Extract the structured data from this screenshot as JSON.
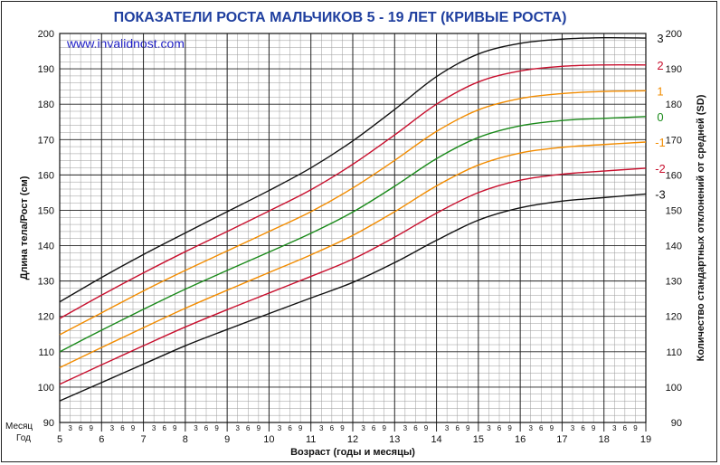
{
  "source_label": "www.invalidnost.com",
  "row_labels": {
    "month": "Месяц",
    "year": "Год"
  },
  "chart_data": {
    "type": "line",
    "title": "ПОКАЗАТЕЛИ РОСТА МАЛЬЧИКОВ 5 - 19 ЛЕТ (КРИВЫЕ РОСТА)",
    "xlabel": "Возраст (годы и месяцы)",
    "ylabel": "Длина тела/Рост (см)",
    "ylabel_right": "Количество стандартных отклонений от средней (SD)",
    "xlim": [
      5,
      19
    ],
    "ylim": [
      90,
      200
    ],
    "x_ticks": [
      5,
      6,
      7,
      8,
      9,
      10,
      11,
      12,
      13,
      14,
      15,
      16,
      17,
      18,
      19
    ],
    "y_ticks": [
      90,
      100,
      110,
      120,
      130,
      140,
      150,
      160,
      170,
      180,
      190,
      200
    ],
    "month_ticks": [
      "3",
      "6",
      "9"
    ],
    "grid": true,
    "x": [
      5,
      6,
      7,
      8,
      9,
      10,
      11,
      12,
      13,
      14,
      15,
      16,
      17,
      18,
      19
    ],
    "series": [
      {
        "name": "3",
        "color": "#111111",
        "values": [
          124.1,
          131.0,
          137.5,
          143.6,
          149.6,
          155.6,
          162.0,
          169.6,
          178.5,
          187.8,
          194.2,
          197.2,
          198.4,
          198.8,
          198.7
        ]
      },
      {
        "name": "2",
        "color": "#c8102e",
        "values": [
          119.4,
          126.0,
          132.3,
          138.3,
          144.0,
          149.8,
          155.8,
          163.0,
          171.3,
          180.0,
          186.3,
          189.4,
          190.7,
          191.1,
          191.1
        ]
      },
      {
        "name": "1",
        "color": "#f28c00",
        "values": [
          114.8,
          121.0,
          127.2,
          133.0,
          138.5,
          144.0,
          149.6,
          156.3,
          164.1,
          172.3,
          178.4,
          181.6,
          183.0,
          183.6,
          183.8
        ]
      },
      {
        "name": "0",
        "color": "#1a8a1a",
        "values": [
          110.0,
          116.1,
          122.0,
          127.7,
          133.0,
          138.2,
          143.5,
          149.5,
          156.8,
          164.6,
          170.6,
          173.9,
          175.4,
          176.0,
          176.5
        ]
      },
      {
        "name": "-1",
        "color": "#f28c00",
        "values": [
          105.5,
          111.2,
          116.8,
          122.3,
          127.4,
          132.4,
          137.4,
          142.9,
          149.6,
          156.9,
          162.8,
          166.2,
          167.8,
          168.6,
          169.3
        ]
      },
      {
        "name": "-2",
        "color": "#c8102e",
        "values": [
          100.8,
          106.3,
          111.7,
          117.0,
          121.9,
          126.6,
          131.3,
          136.2,
          142.4,
          149.2,
          155.0,
          158.5,
          160.2,
          161.1,
          161.9
        ]
      },
      {
        "name": "-3",
        "color": "#111111",
        "values": [
          96.1,
          101.3,
          106.5,
          111.7,
          116.3,
          120.8,
          125.2,
          129.6,
          135.2,
          141.5,
          147.2,
          150.7,
          152.6,
          153.6,
          154.6
        ]
      }
    ]
  }
}
